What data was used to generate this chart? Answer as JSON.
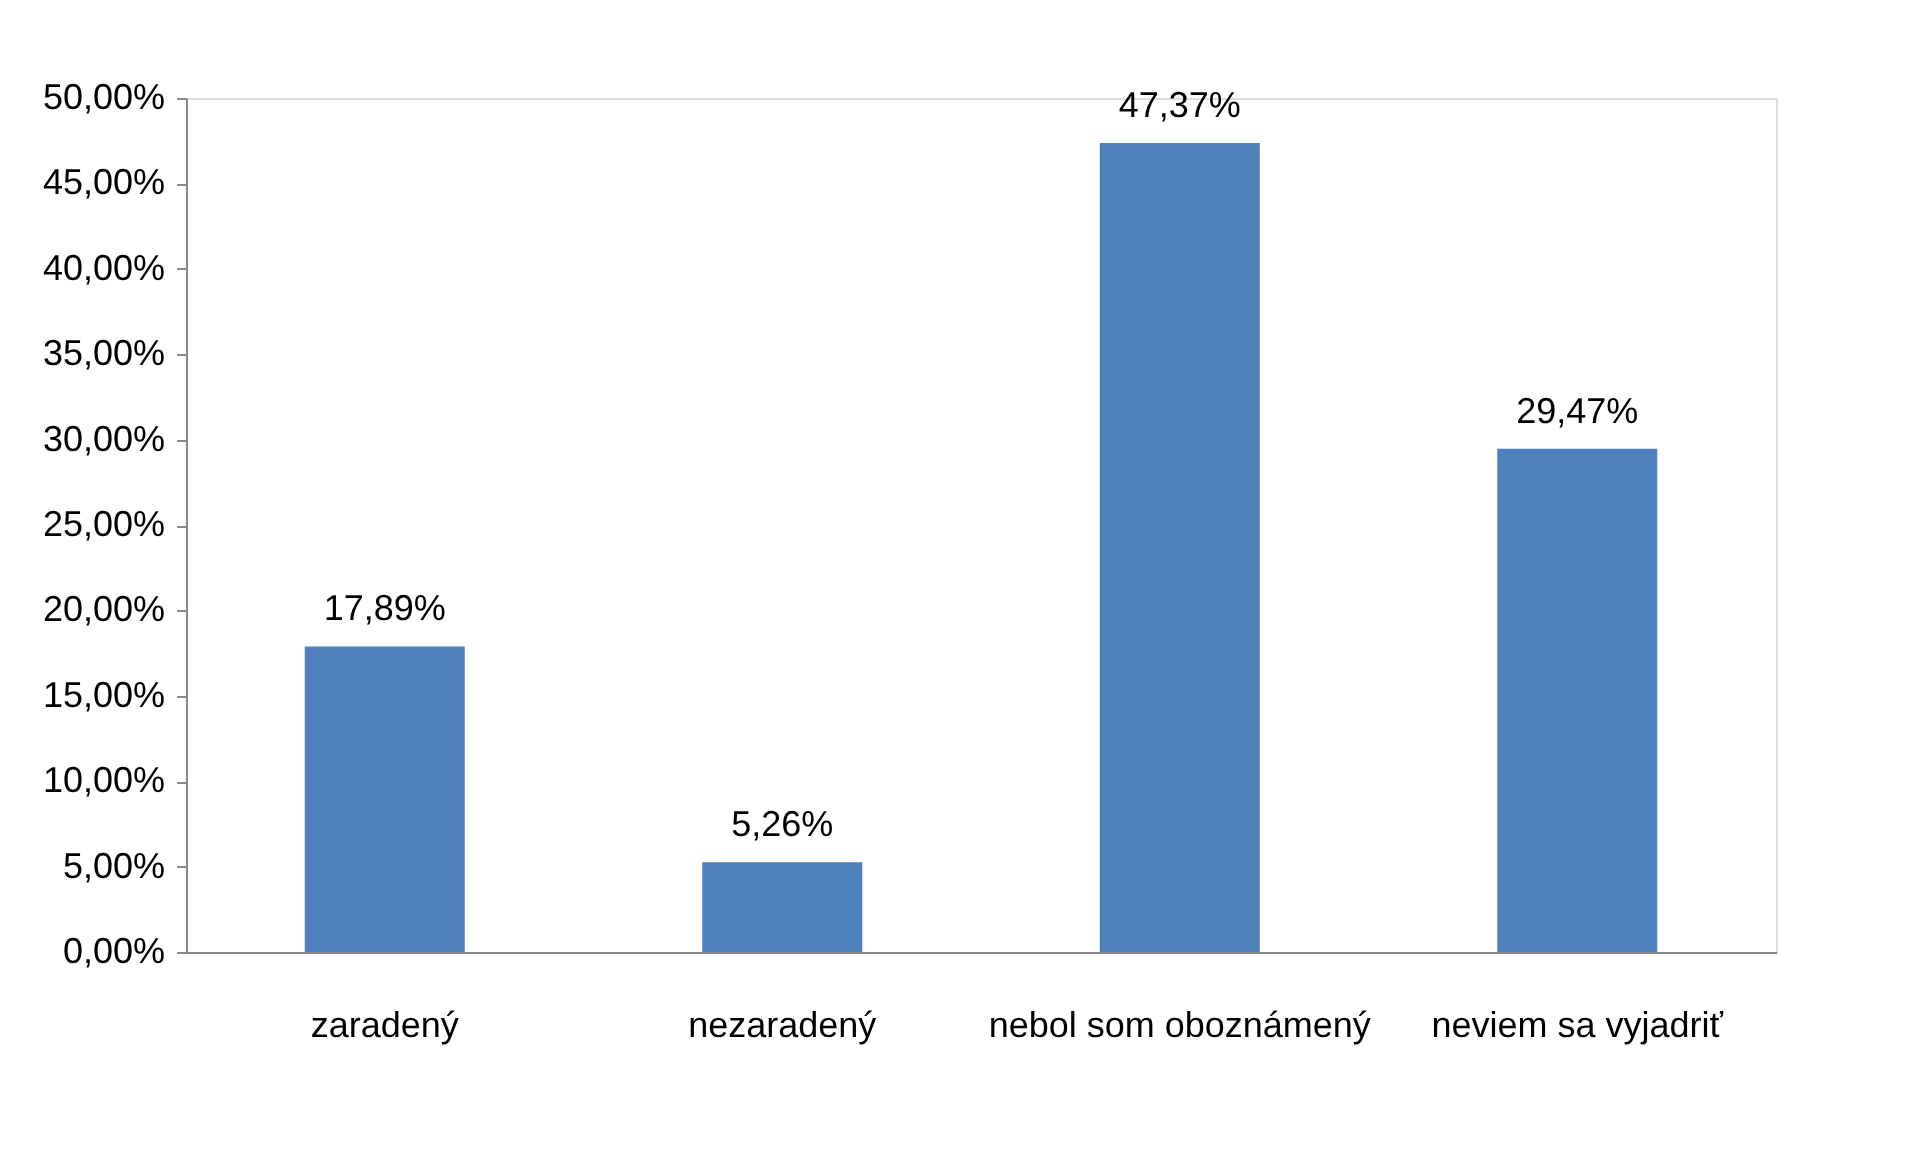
{
  "chart_data": {
    "type": "bar",
    "categories": [
      "zaradený",
      "nezaradený",
      "nebol som oboznámený",
      "neviem sa vyjadriť"
    ],
    "values": [
      17.89,
      5.26,
      47.37,
      29.47
    ],
    "value_labels": [
      "17,89%",
      "5,26%",
      "47,37%",
      "29,47%"
    ],
    "color": "#4f81bd",
    "ylim": [
      0,
      50
    ],
    "yticks": [
      {
        "value": 0,
        "label": "0,00%"
      },
      {
        "value": 5,
        "label": "5,00%"
      },
      {
        "value": 10,
        "label": "10,00%"
      },
      {
        "value": 15,
        "label": "15,00%"
      },
      {
        "value": 20,
        "label": "20,00%"
      },
      {
        "value": 25,
        "label": "25,00%"
      },
      {
        "value": 30,
        "label": "30,00%"
      },
      {
        "value": 35,
        "label": "35,00%"
      },
      {
        "value": 40,
        "label": "40,00%"
      },
      {
        "value": 45,
        "label": "45,00%"
      },
      {
        "value": 50,
        "label": "50,00%"
      }
    ],
    "grid": false
  }
}
